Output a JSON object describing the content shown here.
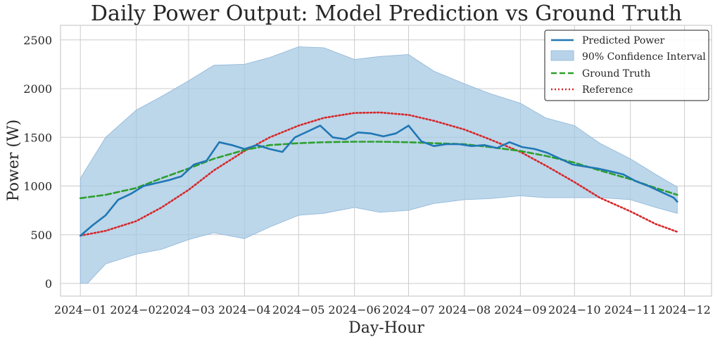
{
  "chart_data": {
    "type": "line",
    "title": "Daily Power Output: Model Prediction vs Ground Truth",
    "xlabel": "Day-Hour",
    "ylabel": "Power (W)",
    "xlim": [
      "2023-12-21",
      "2024-12-16"
    ],
    "ylim": [
      -130,
      2650
    ],
    "yticks": [
      0,
      500,
      1000,
      1500,
      2000,
      2500
    ],
    "xticks": [
      "2024-01-01",
      "2024-02-01",
      "2024-03-01",
      "2024-04-01",
      "2024-05-01",
      "2024-06-01",
      "2024-07-01",
      "2024-08-01",
      "2024-09-01",
      "2024-10-01",
      "2024-11-01",
      "2024-12-01"
    ],
    "xtick_labels": [
      "2024−01",
      "2024−02",
      "2024−03",
      "2024−04",
      "2024−05",
      "2024−06",
      "2024−07",
      "2024−08",
      "2024−09",
      "2024−10",
      "2024−11",
      "2024−12"
    ],
    "grid": true,
    "legend_position": "top-right",
    "colors": {
      "predicted": "#1f77b4",
      "ci_fill": "#a6c8e3",
      "ground_truth": "#2ca02c",
      "reference": "#d62728"
    },
    "series": [
      {
        "name": "Predicted Power",
        "style": "solid",
        "x": [
          "2024-01-01",
          "2024-01-08",
          "2024-01-15",
          "2024-01-22",
          "2024-01-29",
          "2024-02-05",
          "2024-02-12",
          "2024-02-19",
          "2024-02-26",
          "2024-03-04",
          "2024-03-11",
          "2024-03-18",
          "2024-03-25",
          "2024-04-01",
          "2024-04-08",
          "2024-04-15",
          "2024-04-22",
          "2024-04-29",
          "2024-05-06",
          "2024-05-13",
          "2024-05-20",
          "2024-05-27",
          "2024-06-03",
          "2024-06-10",
          "2024-06-17",
          "2024-06-24",
          "2024-07-01",
          "2024-07-08",
          "2024-07-15",
          "2024-07-22",
          "2024-07-29",
          "2024-08-05",
          "2024-08-12",
          "2024-08-19",
          "2024-08-26",
          "2024-09-02",
          "2024-09-09",
          "2024-09-16",
          "2024-09-23",
          "2024-09-30",
          "2024-10-07",
          "2024-10-14",
          "2024-10-21",
          "2024-10-28",
          "2024-11-04",
          "2024-11-11",
          "2024-11-18",
          "2024-11-25",
          "2024-11-27"
        ],
        "values": [
          490,
          600,
          700,
          860,
          920,
          1000,
          1030,
          1060,
          1100,
          1220,
          1260,
          1450,
          1420,
          1380,
          1420,
          1380,
          1350,
          1500,
          1560,
          1620,
          1500,
          1480,
          1550,
          1540,
          1510,
          1540,
          1620,
          1460,
          1410,
          1430,
          1430,
          1410,
          1420,
          1390,
          1450,
          1400,
          1380,
          1340,
          1280,
          1220,
          1200,
          1180,
          1150,
          1120,
          1050,
          1000,
          940,
          880,
          840
        ]
      },
      {
        "name": "Ground Truth",
        "style": "dashed",
        "x": [
          "2024-01-01",
          "2024-01-15",
          "2024-02-01",
          "2024-02-15",
          "2024-03-01",
          "2024-03-15",
          "2024-04-01",
          "2024-04-15",
          "2024-05-01",
          "2024-05-15",
          "2024-06-01",
          "2024-06-15",
          "2024-07-01",
          "2024-07-15",
          "2024-08-01",
          "2024-08-15",
          "2024-09-01",
          "2024-09-15",
          "2024-10-01",
          "2024-10-15",
          "2024-11-01",
          "2024-11-15",
          "2024-11-27"
        ],
        "values": [
          875,
          910,
          980,
          1080,
          1180,
          1280,
          1370,
          1420,
          1440,
          1450,
          1455,
          1455,
          1450,
          1440,
          1430,
          1400,
          1360,
          1310,
          1240,
          1160,
          1070,
          980,
          910
        ]
      },
      {
        "name": "Reference",
        "style": "dotted",
        "x": [
          "2024-01-01",
          "2024-01-15",
          "2024-02-01",
          "2024-02-15",
          "2024-03-01",
          "2024-03-15",
          "2024-04-01",
          "2024-04-15",
          "2024-05-01",
          "2024-05-15",
          "2024-06-01",
          "2024-06-15",
          "2024-07-01",
          "2024-07-15",
          "2024-08-01",
          "2024-08-15",
          "2024-09-01",
          "2024-09-15",
          "2024-10-01",
          "2024-10-15",
          "2024-11-01",
          "2024-11-15",
          "2024-11-27"
        ],
        "values": [
          490,
          540,
          640,
          780,
          960,
          1160,
          1360,
          1500,
          1620,
          1700,
          1750,
          1755,
          1730,
          1670,
          1580,
          1480,
          1350,
          1210,
          1040,
          880,
          740,
          610,
          530
        ]
      }
    ],
    "confidence_interval": {
      "name": "90% Confidence Interval",
      "x": [
        "2024-01-01",
        "2024-01-05",
        "2024-01-15",
        "2024-02-01",
        "2024-02-15",
        "2024-03-01",
        "2024-03-15",
        "2024-04-01",
        "2024-04-15",
        "2024-05-01",
        "2024-05-15",
        "2024-06-01",
        "2024-06-15",
        "2024-07-01",
        "2024-07-15",
        "2024-08-01",
        "2024-08-15",
        "2024-09-01",
        "2024-09-15",
        "2024-10-01",
        "2024-10-15",
        "2024-11-01",
        "2024-11-15",
        "2024-11-27"
      ],
      "lower": [
        0,
        0,
        200,
        300,
        350,
        450,
        520,
        460,
        580,
        700,
        720,
        780,
        730,
        750,
        820,
        860,
        870,
        900,
        880,
        880,
        880,
        860,
        780,
        720
      ],
      "upper": [
        1080,
        1200,
        1500,
        1780,
        1920,
        2080,
        2240,
        2250,
        2320,
        2430,
        2420,
        2300,
        2330,
        2350,
        2180,
        2050,
        1950,
        1850,
        1700,
        1620,
        1440,
        1280,
        1120,
        990
      ]
    }
  }
}
